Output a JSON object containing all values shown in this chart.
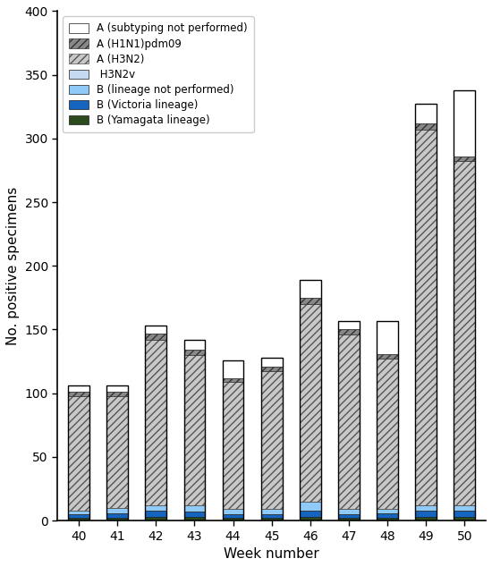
{
  "weeks": [
    40,
    41,
    42,
    43,
    44,
    45,
    46,
    47,
    48,
    49,
    50
  ],
  "series": {
    "B_Yamagata": [
      2,
      2,
      3,
      3,
      2,
      2,
      3,
      2,
      2,
      3,
      3
    ],
    "B_Victoria": [
      3,
      4,
      5,
      4,
      3,
      3,
      5,
      3,
      4,
      5,
      5
    ],
    "B_lineage_not": [
      3,
      4,
      4,
      5,
      4,
      4,
      7,
      4,
      3,
      4,
      4
    ],
    "H3N2v": [
      0,
      0,
      0,
      0,
      0,
      0,
      0,
      0,
      0,
      0,
      0
    ],
    "A_H3N2": [
      90,
      88,
      130,
      118,
      100,
      108,
      155,
      137,
      118,
      295,
      270
    ],
    "A_H1N1": [
      3,
      3,
      5,
      4,
      3,
      4,
      5,
      4,
      4,
      5,
      4
    ],
    "A_subtype_not": [
      5,
      5,
      6,
      8,
      14,
      7,
      14,
      7,
      26,
      15,
      52
    ]
  },
  "colors": {
    "B_Yamagata": "#2d4a1e",
    "B_Victoria": "#1565c0",
    "B_lineage_not": "#90caf9",
    "H3N2v": "#c5d9f1",
    "A_H3N2": "#c8c8c8",
    "A_H1N1": "#888888",
    "A_subtype_not": "#ffffff"
  },
  "hatch_A_H3N2": "////",
  "hatch_A_H1N1": "////",
  "hatch_A_subtype_not": "",
  "hatch_B_Yamagata": "",
  "hatch_B_Victoria": "",
  "hatch_B_lineage_not": "",
  "hatch_H3N2v": "",
  "legend_labels": [
    "A (subtyping not performed)",
    "A (H1N1)pdm09",
    "A (H3N2)",
    " H3N2v",
    "B (lineage not performed)",
    "B (Victoria lineage)",
    "B (Yamagata lineage)"
  ],
  "ylabel": "No. positive specimens",
  "xlabel": "Week number",
  "ylim": [
    0,
    400
  ],
  "yticks": [
    0,
    50,
    100,
    150,
    200,
    250,
    300,
    350,
    400
  ],
  "bar_width": 0.55
}
